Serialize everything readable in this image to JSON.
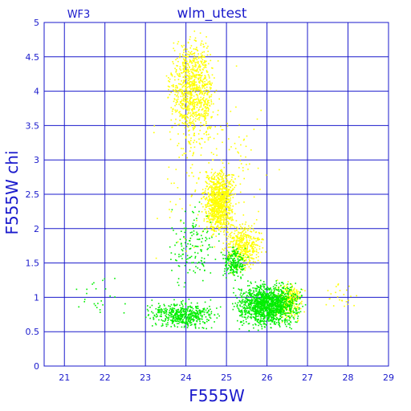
{
  "chart_data": {
    "type": "scatter",
    "title": "wlm_utest",
    "subtitle": "WF3",
    "xlabel": "F555W",
    "ylabel": "F555W  chi",
    "xlim": [
      20.5,
      29
    ],
    "ylim": [
      0,
      5
    ],
    "xticks": [
      "21",
      "22",
      "23",
      "24",
      "25",
      "26",
      "27",
      "28",
      "29"
    ],
    "yticks": [
      "0",
      "0.5",
      "1",
      "1.5",
      "2",
      "2.5",
      "3",
      "3.5",
      "4",
      "4.5",
      "5"
    ],
    "grid": true,
    "series": [
      {
        "color": "#ffff00",
        "clusters": [
          {
            "x": [
              23.4,
              24.9
            ],
            "y": [
              3.0,
              5.0
            ],
            "n": 900
          },
          {
            "x": [
              24.3,
              25.3
            ],
            "y": [
              1.8,
              3.0
            ],
            "n": 900
          },
          {
            "x": [
              24.8,
              26.0
            ],
            "y": [
              1.3,
              2.2
            ],
            "n": 400
          },
          {
            "x": [
              26.0,
              27.0
            ],
            "y": [
              0.6,
              1.3
            ],
            "n": 300
          },
          {
            "x": [
              22.8,
              26.5
            ],
            "y": [
              1.0,
              4.5
            ],
            "n": 200
          },
          {
            "x": [
              27.0,
              28.6
            ],
            "y": [
              0.7,
              1.3
            ],
            "n": 25
          }
        ]
      },
      {
        "color": "#00ee00",
        "clusters": [
          {
            "x": [
              25.0,
              27.0
            ],
            "y": [
              0.5,
              1.3
            ],
            "n": 1400
          },
          {
            "x": [
              22.8,
              25.0
            ],
            "y": [
              0.5,
              1.0
            ],
            "n": 500
          },
          {
            "x": [
              24.8,
              25.6
            ],
            "y": [
              1.2,
              1.8
            ],
            "n": 200
          },
          {
            "x": [
              23.4,
              25.0
            ],
            "y": [
              1.0,
              2.5
            ],
            "n": 150
          },
          {
            "x": [
              20.8,
              22.8
            ],
            "y": [
              0.5,
              1.6
            ],
            "n": 25
          }
        ]
      }
    ]
  },
  "colors": {
    "axis": "#1a1acc",
    "grid": "#1a1acc",
    "background": "#ffffff"
  }
}
